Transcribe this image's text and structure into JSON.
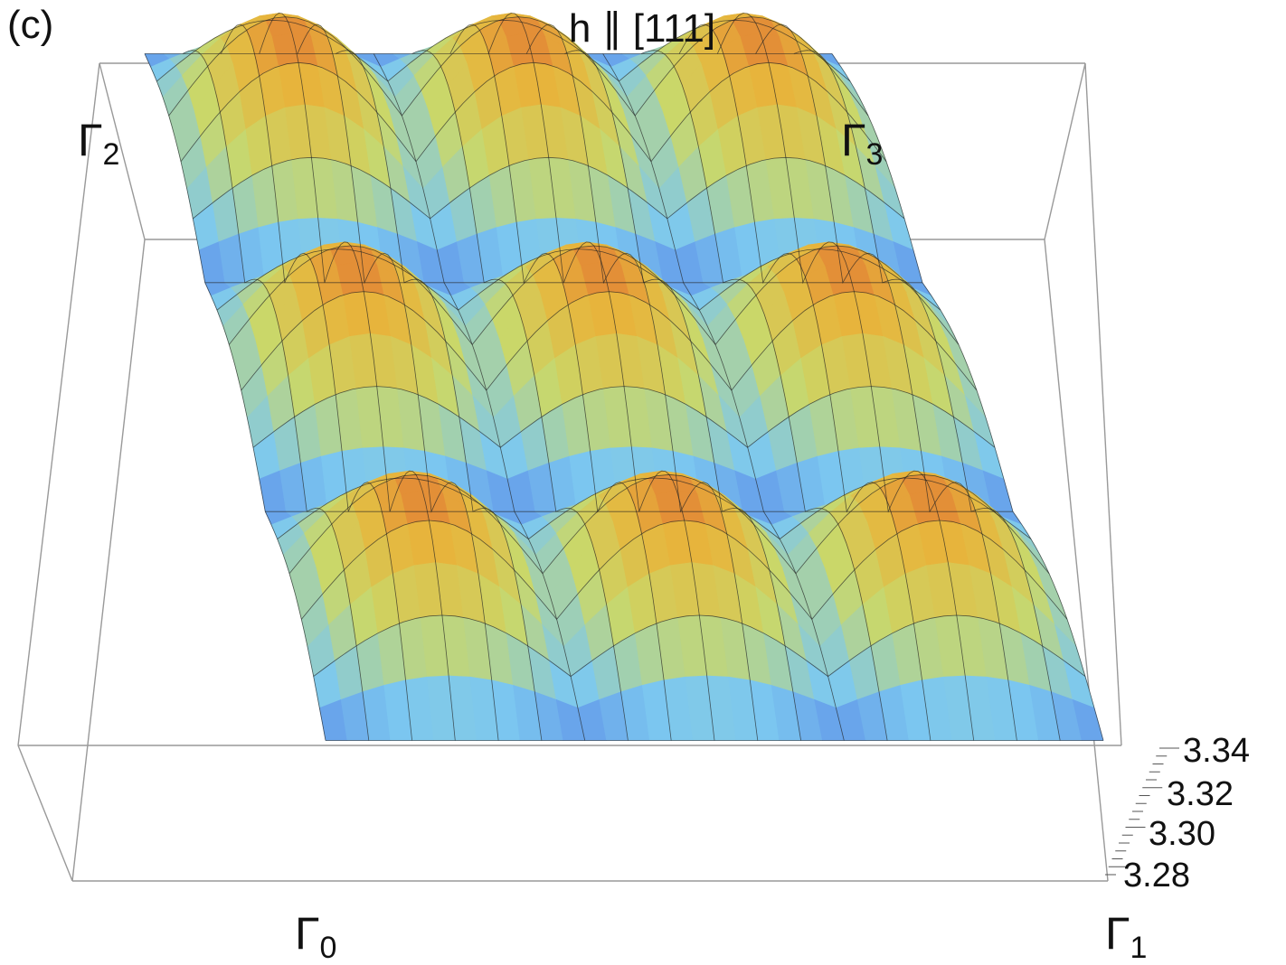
{
  "panel_label": "(c)",
  "title": "h ∥ [111]",
  "corners": {
    "g2": {
      "symbol": "Γ",
      "sub": "2"
    },
    "g3": {
      "symbol": "Γ",
      "sub": "3"
    },
    "g0": {
      "symbol": "Γ",
      "sub": "0"
    },
    "g1": {
      "symbol": "Γ",
      "sub": "1"
    }
  },
  "colors": {
    "low": "#2a2fd8",
    "mid_low": "#7cc8f0",
    "mid": "#c9d86a",
    "mid_high": "#e7b53c",
    "high": "#d8262a",
    "mesh": "#222222",
    "box": "#999999"
  },
  "chart_data": {
    "type": "surface",
    "title": "h ∥ [111]",
    "corner_labels": [
      "Γ0",
      "Γ1",
      "Γ2",
      "Γ3"
    ],
    "z_ticks": [
      "3.34",
      "3.32",
      "3.30",
      "3.28"
    ],
    "zlim": [
      3.27,
      3.35
    ],
    "grid": false,
    "colormap": "blue-cyan-yellow-orange-red",
    "rows": 3,
    "peaks_per_row": 3,
    "max_z": 3.34,
    "min_z": 3.28
  }
}
